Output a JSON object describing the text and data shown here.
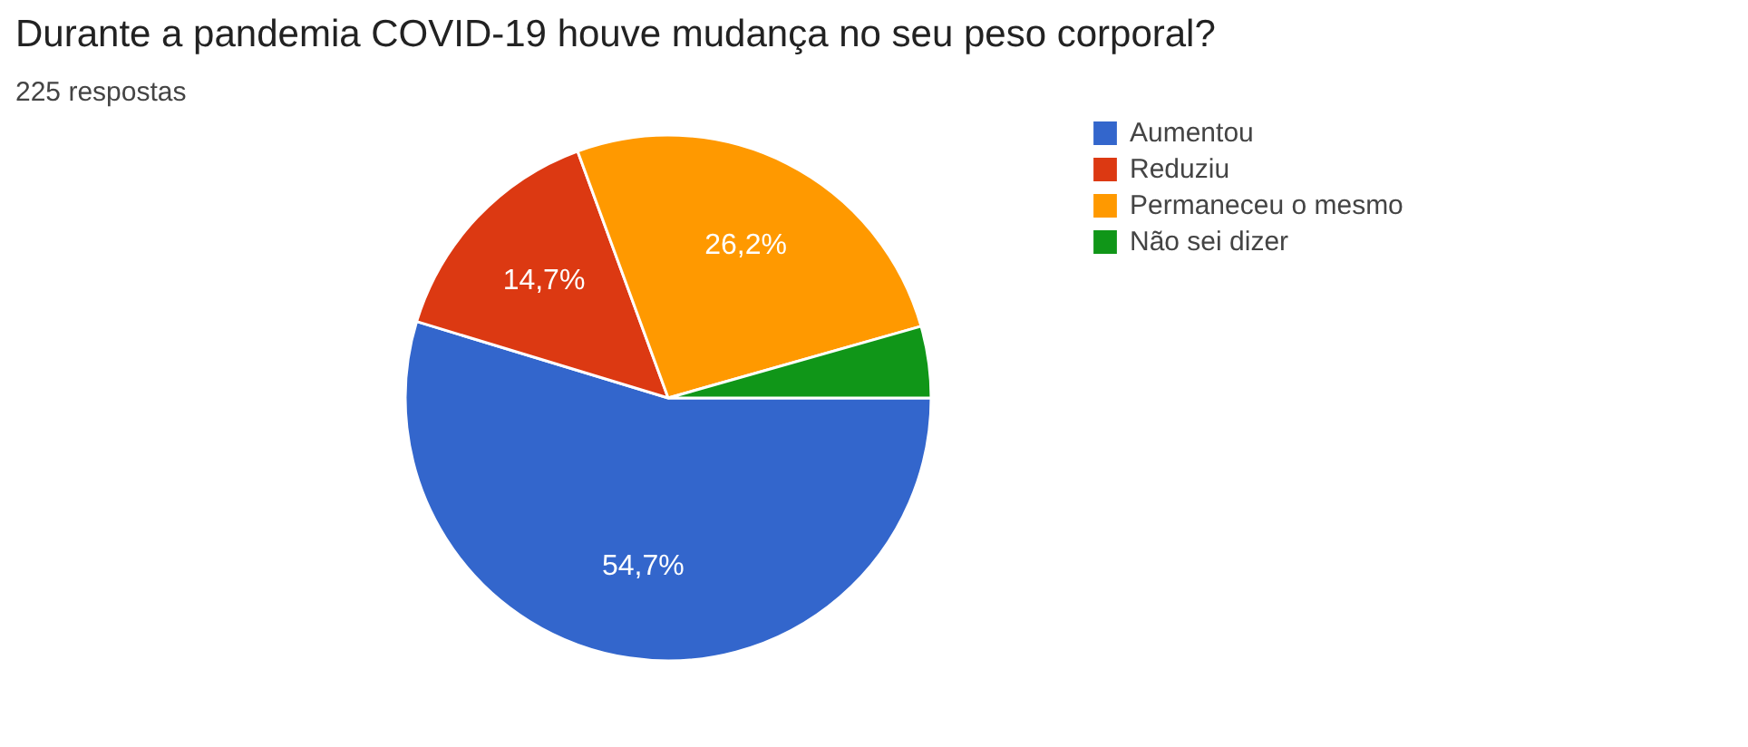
{
  "chart_data": {
    "type": "pie",
    "title": "Durante a pandemia COVID-19 houve mudança no seu peso corporal?",
    "subtitle": "225 respostas",
    "categories": [
      "Aumentou",
      "Reduziu",
      "Permaneceu o mesmo",
      "Não sei dizer"
    ],
    "values": [
      54.7,
      14.7,
      26.2,
      4.4
    ],
    "colors": [
      "#3366cc",
      "#dc3912",
      "#ff9900",
      "#109618"
    ],
    "value_labels": [
      "54,7%",
      "14,7%",
      "26,2%",
      null
    ],
    "legend": "right"
  }
}
